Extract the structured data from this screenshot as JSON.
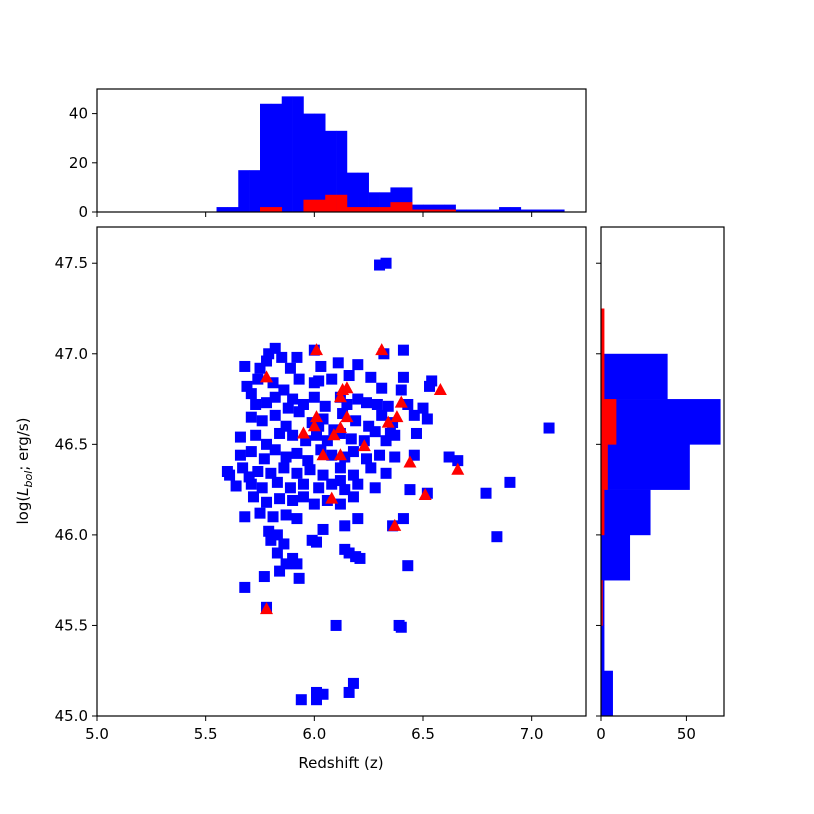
{
  "chart_data": {
    "type": "scatter",
    "title": "",
    "xlabel": "Redshift (z)",
    "ylabel": "log(L_bol; erg/s)",
    "ylabel_parts": {
      "prefix": "log(",
      "L": "L",
      "sub": "bol",
      "suffix": "; erg/s)"
    },
    "xlim": [
      5.0,
      7.25
    ],
    "ylim": [
      45.0,
      47.7
    ],
    "xticks": [
      5.0,
      5.5,
      6.0,
      6.5,
      7.0
    ],
    "xtick_labels": [
      "5.0",
      "5.5",
      "6.0",
      "6.5",
      "7.0"
    ],
    "yticks": [
      45.0,
      45.5,
      46.0,
      46.5,
      47.0,
      47.5
    ],
    "ytick_labels": [
      "45.0",
      "45.5",
      "46.0",
      "46.5",
      "47.0",
      "47.5"
    ],
    "colors": {
      "series_1": "#0000ff",
      "series_2": "#ff0000"
    },
    "series": [
      {
        "marker": "square",
        "color": "#0000ff",
        "points": [
          [
            6.3,
            47.49
          ],
          [
            6.33,
            47.5
          ],
          [
            5.79,
            47.0
          ],
          [
            5.82,
            47.03
          ],
          [
            5.78,
            46.96
          ],
          [
            5.85,
            46.98
          ],
          [
            5.92,
            46.98
          ],
          [
            6.0,
            47.02
          ],
          [
            6.11,
            46.95
          ],
          [
            6.2,
            46.94
          ],
          [
            6.32,
            47.0
          ],
          [
            6.41,
            47.02
          ],
          [
            5.75,
            46.92
          ],
          [
            5.68,
            46.93
          ],
          [
            5.89,
            46.92
          ],
          [
            6.03,
            46.93
          ],
          [
            5.69,
            46.82
          ],
          [
            5.74,
            46.86
          ],
          [
            5.81,
            46.84
          ],
          [
            5.86,
            46.8
          ],
          [
            5.93,
            46.86
          ],
          [
            6.0,
            46.84
          ],
          [
            6.02,
            46.85
          ],
          [
            6.08,
            46.86
          ],
          [
            6.16,
            46.88
          ],
          [
            6.26,
            46.87
          ],
          [
            6.31,
            46.81
          ],
          [
            6.41,
            46.87
          ],
          [
            6.53,
            46.82
          ],
          [
            6.54,
            46.85
          ],
          [
            6.4,
            46.8
          ],
          [
            5.71,
            46.78
          ],
          [
            5.73,
            46.72
          ],
          [
            5.78,
            46.73
          ],
          [
            5.82,
            46.76
          ],
          [
            5.88,
            46.7
          ],
          [
            5.9,
            46.75
          ],
          [
            5.95,
            46.72
          ],
          [
            6.0,
            46.76
          ],
          [
            6.05,
            46.71
          ],
          [
            6.12,
            46.76
          ],
          [
            6.15,
            46.72
          ],
          [
            6.2,
            46.75
          ],
          [
            6.24,
            46.73
          ],
          [
            6.29,
            46.72
          ],
          [
            6.34,
            46.71
          ],
          [
            6.43,
            46.72
          ],
          [
            6.5,
            46.7
          ],
          [
            5.71,
            46.65
          ],
          [
            5.76,
            46.63
          ],
          [
            5.82,
            46.66
          ],
          [
            5.87,
            46.6
          ],
          [
            5.93,
            46.68
          ],
          [
            5.99,
            46.62
          ],
          [
            6.04,
            46.64
          ],
          [
            6.09,
            46.58
          ],
          [
            6.13,
            46.67
          ],
          [
            6.19,
            46.63
          ],
          [
            6.25,
            46.6
          ],
          [
            6.31,
            46.66
          ],
          [
            6.36,
            46.62
          ],
          [
            6.46,
            46.66
          ],
          [
            6.52,
            46.64
          ],
          [
            6.02,
            46.6
          ],
          [
            5.66,
            46.54
          ],
          [
            5.73,
            46.55
          ],
          [
            5.78,
            46.5
          ],
          [
            5.84,
            46.56
          ],
          [
            5.9,
            46.55
          ],
          [
            5.96,
            46.52
          ],
          [
            6.01,
            46.55
          ],
          [
            6.06,
            46.52
          ],
          [
            6.12,
            46.56
          ],
          [
            6.17,
            46.53
          ],
          [
            6.23,
            46.52
          ],
          [
            6.28,
            46.57
          ],
          [
            6.33,
            46.52
          ],
          [
            6.37,
            46.55
          ],
          [
            6.47,
            46.56
          ],
          [
            6.35,
            46.56
          ],
          [
            5.66,
            46.44
          ],
          [
            5.71,
            46.46
          ],
          [
            5.77,
            46.42
          ],
          [
            5.82,
            46.47
          ],
          [
            5.87,
            46.43
          ],
          [
            5.92,
            46.45
          ],
          [
            5.97,
            46.41
          ],
          [
            6.03,
            46.47
          ],
          [
            6.08,
            46.44
          ],
          [
            6.14,
            46.43
          ],
          [
            6.18,
            46.46
          ],
          [
            6.24,
            46.42
          ],
          [
            6.3,
            46.44
          ],
          [
            6.37,
            46.43
          ],
          [
            6.46,
            46.44
          ],
          [
            6.62,
            46.43
          ],
          [
            5.6,
            46.35
          ],
          [
            5.61,
            46.33
          ],
          [
            5.67,
            46.37
          ],
          [
            5.74,
            46.35
          ],
          [
            5.8,
            46.34
          ],
          [
            5.86,
            46.37
          ],
          [
            5.92,
            46.34
          ],
          [
            5.98,
            46.36
          ],
          [
            6.04,
            46.33
          ],
          [
            6.12,
            46.37
          ],
          [
            6.18,
            46.33
          ],
          [
            6.26,
            46.37
          ],
          [
            6.33,
            46.34
          ],
          [
            6.66,
            46.41
          ],
          [
            5.7,
            46.32
          ],
          [
            6.12,
            46.3
          ],
          [
            5.64,
            46.27
          ],
          [
            5.71,
            46.28
          ],
          [
            5.76,
            46.26
          ],
          [
            5.83,
            46.29
          ],
          [
            5.89,
            46.26
          ],
          [
            5.95,
            46.28
          ],
          [
            6.02,
            46.26
          ],
          [
            6.08,
            46.28
          ],
          [
            6.14,
            46.25
          ],
          [
            6.2,
            46.28
          ],
          [
            6.28,
            46.26
          ],
          [
            6.44,
            46.25
          ],
          [
            6.52,
            46.23
          ],
          [
            6.79,
            46.23
          ],
          [
            6.9,
            46.29
          ],
          [
            7.08,
            46.59
          ],
          [
            5.72,
            46.21
          ],
          [
            5.78,
            46.18
          ],
          [
            5.84,
            46.2
          ],
          [
            5.9,
            46.19
          ],
          [
            5.95,
            46.21
          ],
          [
            6.0,
            46.17
          ],
          [
            6.06,
            46.19
          ],
          [
            6.12,
            46.17
          ],
          [
            6.18,
            46.21
          ],
          [
            5.68,
            46.1
          ],
          [
            5.75,
            46.12
          ],
          [
            5.81,
            46.1
          ],
          [
            5.87,
            46.11
          ],
          [
            5.92,
            46.09
          ],
          [
            6.04,
            46.03
          ],
          [
            6.14,
            46.05
          ],
          [
            6.2,
            46.09
          ],
          [
            6.36,
            46.05
          ],
          [
            6.41,
            46.09
          ],
          [
            5.79,
            46.02
          ],
          [
            5.83,
            46.0
          ],
          [
            5.8,
            45.97
          ],
          [
            5.86,
            45.95
          ],
          [
            5.99,
            45.97
          ],
          [
            6.01,
            45.96
          ],
          [
            6.84,
            45.99
          ],
          [
            5.83,
            45.9
          ],
          [
            5.9,
            45.87
          ],
          [
            5.87,
            45.84
          ],
          [
            5.92,
            45.84
          ],
          [
            5.84,
            45.8
          ],
          [
            6.14,
            45.92
          ],
          [
            6.16,
            45.9
          ],
          [
            6.19,
            45.88
          ],
          [
            6.21,
            45.87
          ],
          [
            6.43,
            45.83
          ],
          [
            5.77,
            45.77
          ],
          [
            5.93,
            45.76
          ],
          [
            5.68,
            45.71
          ],
          [
            5.78,
            45.6
          ],
          [
            6.1,
            45.5
          ],
          [
            6.39,
            45.5
          ],
          [
            6.4,
            45.49
          ],
          [
            5.94,
            45.09
          ],
          [
            6.01,
            45.09
          ],
          [
            6.01,
            45.13
          ],
          [
            6.04,
            45.12
          ],
          [
            6.18,
            45.18
          ],
          [
            6.16,
            45.13
          ]
        ]
      },
      {
        "marker": "triangle",
        "color": "#ff0000",
        "points": [
          [
            5.78,
            46.87
          ],
          [
            6.01,
            47.02
          ],
          [
            6.31,
            47.02
          ],
          [
            6.13,
            46.8
          ],
          [
            6.15,
            46.81
          ],
          [
            6.12,
            46.76
          ],
          [
            6.58,
            46.8
          ],
          [
            6.4,
            46.73
          ],
          [
            6.01,
            46.65
          ],
          [
            6.15,
            46.65
          ],
          [
            6.38,
            46.65
          ],
          [
            6.34,
            46.62
          ],
          [
            6.0,
            46.6
          ],
          [
            6.12,
            46.59
          ],
          [
            5.95,
            46.56
          ],
          [
            6.09,
            46.55
          ],
          [
            6.23,
            46.49
          ],
          [
            6.04,
            46.44
          ],
          [
            6.12,
            46.44
          ],
          [
            6.44,
            46.4
          ],
          [
            6.66,
            46.36
          ],
          [
            6.51,
            46.22
          ],
          [
            6.08,
            46.2
          ],
          [
            6.37,
            46.05
          ],
          [
            5.78,
            45.59
          ]
        ]
      }
    ],
    "top_histogram": {
      "bin_edges": [
        5.45,
        5.5,
        5.55,
        5.6,
        5.65,
        5.7,
        5.75,
        5.8,
        5.85,
        5.9,
        5.95,
        6.0,
        6.05,
        6.1,
        6.15,
        6.2,
        6.25,
        6.3,
        6.35,
        6.4,
        6.45,
        6.5,
        6.55,
        6.6,
        6.65,
        6.7,
        6.75,
        6.8,
        6.85,
        6.9,
        6.95,
        7.0,
        7.05,
        7.1,
        7.15
      ],
      "blue": [
        0,
        0,
        2,
        2,
        17,
        17,
        44,
        44,
        47,
        47,
        40,
        40,
        33,
        33,
        16,
        16,
        8,
        8,
        10,
        10,
        3,
        3,
        3,
        3,
        1,
        1,
        1,
        1,
        2,
        2,
        1,
        1,
        1,
        1
      ],
      "red": [
        0,
        0,
        0,
        0,
        0,
        0,
        2,
        2,
        0,
        0,
        5,
        5,
        7,
        7,
        2,
        2,
        2,
        2,
        4,
        4,
        1,
        1,
        1,
        1,
        0,
        0,
        0,
        0,
        0,
        0,
        0,
        0,
        0,
        0
      ],
      "ylim": [
        0,
        50
      ],
      "yticks": [
        0,
        20,
        40
      ],
      "ytick_labels": [
        "0",
        "20",
        "40"
      ],
      "xticks": [
        5.0,
        5.5,
        6.0,
        6.5,
        7.0
      ]
    },
    "right_histogram": {
      "bin_edges": [
        45.0,
        45.25,
        45.5,
        45.75,
        46.0,
        46.25,
        46.5,
        46.75,
        47.0,
        47.25,
        47.5,
        47.7
      ],
      "blue": [
        7,
        2,
        2,
        17,
        29,
        52,
        70,
        39,
        0,
        0,
        0
      ],
      "red": [
        0,
        0,
        1,
        0,
        2,
        4,
        9,
        2,
        2,
        0,
        0
      ],
      "xlim": [
        0,
        72
      ],
      "xticks": [
        0,
        50
      ],
      "xtick_labels": [
        "0",
        "50"
      ]
    }
  }
}
